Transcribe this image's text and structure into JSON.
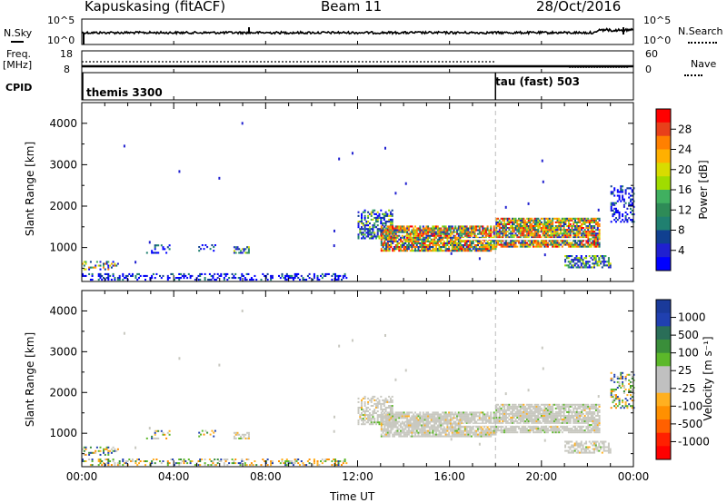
{
  "header": {
    "station": "Kapuskasing (fitACF)",
    "beam": "Beam 11",
    "date": "28/Oct/2016"
  },
  "top_panels": {
    "nsky_label": "N.Sky",
    "nsky_ticks": [
      "10^5",
      "10^0"
    ],
    "nsearch_label": "N.Search",
    "nsearch_ticks": [
      "10^5",
      "10^0"
    ],
    "freq_label_1": "Freq.",
    "freq_label_2": "[MHz]",
    "freq_ticks": [
      "18",
      "8"
    ],
    "nave_label": "Nave",
    "nave_ticks": [
      "60",
      "0"
    ],
    "cpid_label": "CPID",
    "cpid_segments": [
      {
        "start_hour": 0,
        "label": "themis 3300"
      },
      {
        "start_hour": 18,
        "label": "tau (fast) 503"
      }
    ]
  },
  "axes": {
    "x_ticks": [
      "00:00",
      "04:00",
      "08:00",
      "12:00",
      "16:00",
      "20:00",
      "00:00"
    ],
    "x_tick_hours": [
      0,
      4,
      8,
      12,
      16,
      20,
      24
    ],
    "x_minor_hours": [
      1,
      2,
      3,
      5,
      6,
      7,
      9,
      10,
      11,
      13,
      14,
      15,
      17,
      18,
      19,
      21,
      22,
      23
    ],
    "xlabel": "Time UT",
    "ylabel": "Slant Range [km]",
    "y_ticks": [
      "4000",
      "3000",
      "2000",
      "1000"
    ],
    "y_tick_values": [
      4000,
      3000,
      2000,
      1000
    ],
    "ylim": [
      180,
      4500
    ],
    "xlim": [
      0,
      24
    ],
    "dashed_line_hour": 18
  },
  "power_colorbar": {
    "label": "Power [dB]",
    "ticks": [
      "28",
      "24",
      "20",
      "16",
      "12",
      "8",
      "4"
    ],
    "colors": [
      "#ff0000",
      "#e8401a",
      "#ff8000",
      "#ffb000",
      "#d8dc00",
      "#a0dc00",
      "#40b060",
      "#2e8b57",
      "#208070",
      "#104090",
      "#2020d0",
      "#0000ff"
    ]
  },
  "velocity_colorbar": {
    "label": "Velocity [m s⁻¹]",
    "ticks": [
      "1000",
      "500",
      "100",
      "25",
      "-25",
      "-100",
      "-500",
      "-1000"
    ],
    "colors": [
      "#1a3a9a",
      "#2040b0",
      "#2a6e58",
      "#3a8e3a",
      "#5cb82a",
      "#c0c0c0",
      "#c0c0c0",
      "#ffb020",
      "#ff9000",
      "#ff6000",
      "#ff2000",
      "#ff0000"
    ]
  },
  "chart_data": {
    "type": "heatmap",
    "title": "Kapuskasing (fitACF) Beam 11 28/Oct/2016",
    "xlabel": "Time UT",
    "ylabel": "Slant Range [km]",
    "xlim": [
      0,
      24
    ],
    "ylim": [
      180,
      4500
    ],
    "power_echoes": [
      {
        "t0": 0.0,
        "t1": 11.5,
        "r0": 200,
        "r1": 350,
        "level": "low-mixed"
      },
      {
        "t0": 0.0,
        "t1": 1.6,
        "r0": 450,
        "r1": 650,
        "level": "mixed"
      },
      {
        "t0": 2.8,
        "t1": 3.8,
        "r0": 850,
        "r1": 1050,
        "level": "low"
      },
      {
        "t0": 5.0,
        "t1": 5.8,
        "r0": 900,
        "r1": 1050,
        "level": "low"
      },
      {
        "t0": 6.6,
        "t1": 7.3,
        "r0": 850,
        "r1": 1000,
        "level": "mid"
      },
      {
        "t0": 12.0,
        "t1": 13.5,
        "r0": 1200,
        "r1": 1900,
        "level": "mid"
      },
      {
        "t0": 13.0,
        "t1": 18.0,
        "r0": 900,
        "r1": 1500,
        "level": "high"
      },
      {
        "t0": 18.0,
        "t1": 22.5,
        "r0": 1000,
        "r1": 1700,
        "level": "high"
      },
      {
        "t0": 21.0,
        "t1": 23.0,
        "r0": 500,
        "r1": 800,
        "level": "mid"
      },
      {
        "t0": 23.0,
        "t1": 24.0,
        "r0": 1600,
        "r1": 2500,
        "level": "low"
      }
    ]
  }
}
